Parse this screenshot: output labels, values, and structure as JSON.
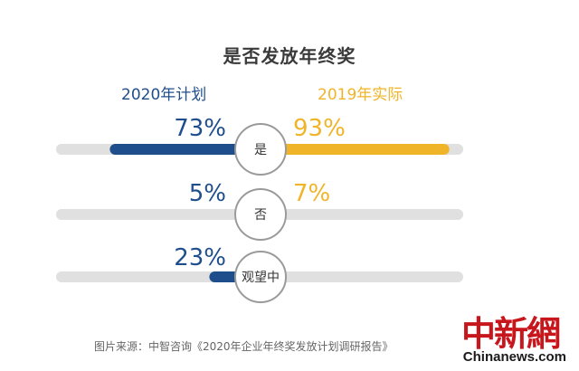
{
  "colors": {
    "plan": "#1f4e8c",
    "actual": "#f0b429",
    "track": "#e0e0e0",
    "circle_border": "#9a9a9a"
  },
  "chart_data": {
    "type": "bar",
    "title": "是否发放年终奖",
    "categories": [
      "是",
      "否",
      "观望中"
    ],
    "series": [
      {
        "name": "2020年计划",
        "values": [
          73,
          5,
          23
        ],
        "labels": [
          "73%",
          "5%",
          "23%"
        ]
      },
      {
        "name": "2019年实际",
        "values": [
          93,
          7,
          null
        ],
        "labels": [
          "93%",
          "7%",
          ""
        ]
      }
    ]
  },
  "source": "图片来源：中智咨询《2020年企业年终奖发放计划调研报告》",
  "watermark": {
    "logo": "中新網",
    "site": "Chinanews.com"
  }
}
